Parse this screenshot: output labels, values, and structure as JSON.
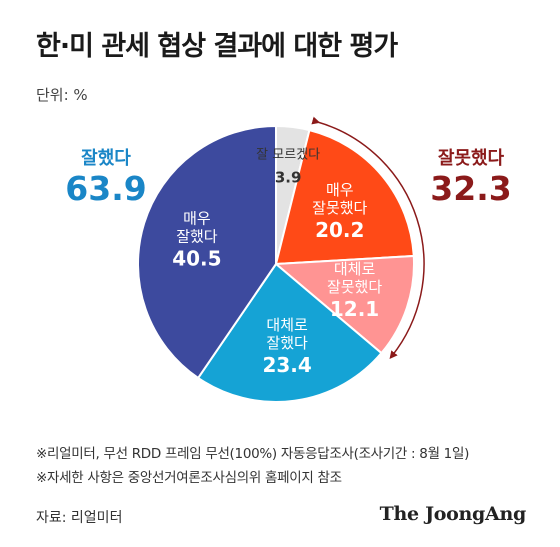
{
  "title": "한·미 관세 협상 결과에 대한 평가",
  "unit": "단위: %",
  "groups": {
    "good": {
      "label": "잘했다",
      "value": "63.9",
      "color": "#1a86c7"
    },
    "bad": {
      "label": "잘못했다",
      "value": "32.3",
      "color": "#8b1a1a"
    }
  },
  "chart_data": {
    "type": "pie",
    "unit": "%",
    "slices": [
      {
        "label_lines": [
          "잘 모르겠다"
        ],
        "value": 3.9,
        "color": "#e3e3e3",
        "text_color": "#333333"
      },
      {
        "label_lines": [
          "매우",
          "잘못했다"
        ],
        "value": 20.2,
        "color": "#ff4a17",
        "text_color": "#ffffff"
      },
      {
        "label_lines": [
          "대체로",
          "잘못했다"
        ],
        "value": 12.1,
        "color": "#ff9493",
        "text_color": "#ffffff"
      },
      {
        "label_lines": [
          "대체로",
          "잘했다"
        ],
        "value": 23.4,
        "color": "#15a3d5",
        "text_color": "#ffffff"
      },
      {
        "label_lines": [
          "매우",
          "잘했다"
        ],
        "value": 40.5,
        "color": "#3d4a9e",
        "text_color": "#ffffff"
      }
    ]
  },
  "notes": [
    "※리얼미터, 무선 RDD 프레임 무선(100%) 자동응답조사(조사기간 : 8월 1일)",
    "※자세한 사항은 중앙선거여론조사심의위 홈페이지 참조"
  ],
  "source": "자료: 리얼미터",
  "brand": "The JoongAng"
}
